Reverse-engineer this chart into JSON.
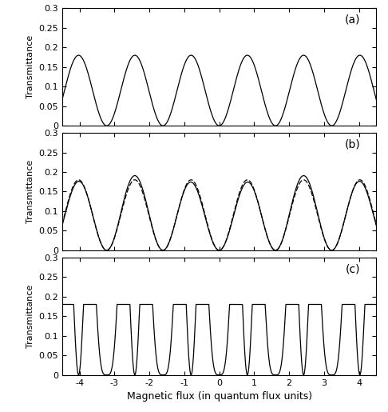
{
  "xlim": [
    -4.5,
    4.5
  ],
  "ylim": [
    0,
    0.3
  ],
  "yticks": [
    0,
    0.05,
    0.1,
    0.15,
    0.2,
    0.25,
    0.3
  ],
  "ytick_labels": [
    "0",
    "0.05",
    "0.1",
    "0.15",
    "0.2",
    "0.25",
    "0.3"
  ],
  "xticks": [
    -4,
    -3,
    -2,
    -1,
    0,
    1,
    2,
    3,
    4
  ],
  "xtick_labels": [
    "-4",
    "-3",
    "-2",
    "-1",
    "0",
    "1",
    "2",
    "3",
    "4"
  ],
  "xlabel": "Magnetic flux (in quantum flux units)",
  "ylabel": "Transmittance",
  "panel_labels": [
    "(a)",
    "(b)",
    "(c)"
  ],
  "figsize": [
    4.86,
    5.15
  ],
  "dpi": 100,
  "background": "#ffffff",
  "panel_a": {
    "omega": 3.9,
    "amplitude": 0.18,
    "type": "sinusoidal"
  },
  "panel_b": {
    "omega": 3.9,
    "amplitude": 0.18,
    "type": "two_curves",
    "envelope_freq": 0.4,
    "envelope_depth": 0.06
  },
  "panel_c": {
    "omega": 3.9,
    "amplitude": 0.18,
    "type": "narrow_peaks",
    "fast_omega": 7.8
  }
}
